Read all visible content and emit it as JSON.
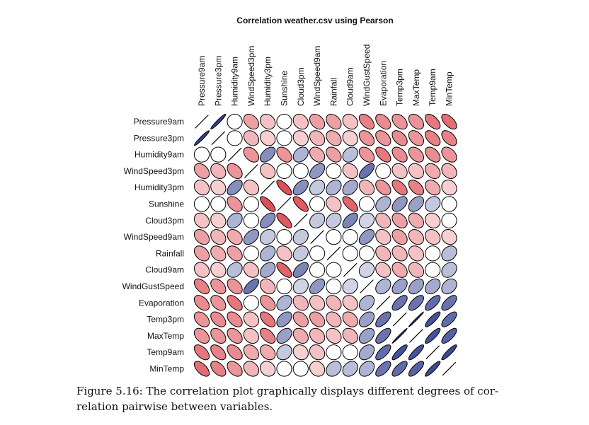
{
  "chart_data": {
    "type": "heatmap",
    "subtype": "correlation-ellipse",
    "title": "Correlation weather.csv using Pearson",
    "method": "Pearson",
    "variables": [
      "Pressure9am",
      "Pressure3pm",
      "Humidity9am",
      "WindSpeed3pm",
      "Humidity3pm",
      "Sunshine",
      "Cloud3pm",
      "WindSpeed9am",
      "Rainfall",
      "Cloud9am",
      "WindGustSpeed",
      "Evaporation",
      "Temp3pm",
      "MaxTemp",
      "Temp9am",
      "MinTemp"
    ],
    "correlations": [
      [
        1.0,
        0.96,
        0.0,
        -0.35,
        -0.2,
        0.0,
        -0.2,
        -0.35,
        -0.35,
        -0.2,
        -0.5,
        -0.45,
        -0.4,
        -0.4,
        -0.55,
        -0.6
      ],
      [
        0.96,
        1.0,
        0.0,
        -0.25,
        -0.15,
        0.0,
        -0.15,
        -0.25,
        -0.3,
        -0.15,
        -0.4,
        -0.4,
        -0.45,
        -0.4,
        -0.5,
        -0.5
      ],
      [
        0.0,
        0.0,
        1.0,
        -0.4,
        0.5,
        -0.4,
        0.3,
        -0.3,
        -0.35,
        0.25,
        -0.4,
        -0.55,
        -0.45,
        -0.4,
        -0.45,
        -0.4
      ],
      [
        -0.35,
        -0.25,
        -0.4,
        1.0,
        -0.2,
        0.0,
        0.0,
        0.45,
        0.0,
        -0.2,
        0.65,
        0.0,
        -0.2,
        -0.2,
        -0.3,
        -0.25
      ],
      [
        -0.2,
        -0.15,
        0.5,
        -0.2,
        1.0,
        -0.75,
        0.5,
        0.2,
        0.3,
        0.35,
        -0.25,
        -0.4,
        -0.55,
        -0.5,
        -0.3,
        -0.15
      ],
      [
        0.0,
        0.0,
        -0.4,
        0.0,
        -0.75,
        1.0,
        -0.7,
        0.0,
        -0.2,
        -0.65,
        0.0,
        0.3,
        0.45,
        0.4,
        0.2,
        0.0
      ],
      [
        -0.2,
        -0.15,
        0.3,
        0.0,
        0.5,
        -0.7,
        1.0,
        0.2,
        0.2,
        0.55,
        0.15,
        -0.25,
        -0.35,
        -0.3,
        -0.15,
        0.0
      ],
      [
        -0.35,
        -0.25,
        -0.3,
        0.45,
        0.2,
        0.0,
        0.2,
        1.0,
        0.0,
        0.0,
        0.45,
        -0.2,
        -0.35,
        -0.25,
        -0.2,
        -0.15
      ],
      [
        -0.35,
        -0.3,
        -0.35,
        0.0,
        0.3,
        -0.2,
        0.2,
        0.0,
        1.0,
        0.0,
        0.0,
        -0.25,
        -0.25,
        -0.2,
        0.0,
        0.25
      ],
      [
        -0.2,
        -0.15,
        0.25,
        -0.2,
        0.35,
        -0.65,
        0.55,
        0.0,
        0.0,
        1.0,
        0.15,
        -0.2,
        -0.3,
        -0.25,
        0.0,
        0.25
      ],
      [
        -0.5,
        -0.4,
        -0.4,
        0.65,
        -0.25,
        0.0,
        0.15,
        0.45,
        0.0,
        0.15,
        1.0,
        0.3,
        0.4,
        0.4,
        0.35,
        0.3
      ],
      [
        -0.45,
        -0.4,
        -0.55,
        0.0,
        -0.4,
        0.3,
        -0.25,
        -0.2,
        -0.25,
        -0.2,
        0.3,
        1.0,
        0.65,
        0.65,
        0.7,
        0.65
      ],
      [
        -0.4,
        -0.45,
        -0.45,
        -0.2,
        -0.55,
        0.45,
        -0.35,
        -0.35,
        -0.25,
        -0.3,
        0.4,
        0.65,
        1.0,
        0.99,
        0.85,
        0.7
      ],
      [
        -0.4,
        -0.4,
        -0.4,
        -0.2,
        -0.5,
        0.4,
        -0.3,
        -0.25,
        -0.2,
        -0.25,
        0.4,
        0.65,
        0.99,
        1.0,
        0.85,
        0.75
      ],
      [
        -0.55,
        -0.5,
        -0.45,
        -0.3,
        -0.3,
        0.2,
        -0.15,
        -0.2,
        0.0,
        0.0,
        0.35,
        0.7,
        0.85,
        0.85,
        1.0,
        0.9
      ],
      [
        -0.6,
        -0.5,
        -0.4,
        -0.25,
        -0.15,
        0.0,
        0.0,
        -0.15,
        0.25,
        0.25,
        0.3,
        0.65,
        0.7,
        0.75,
        0.9,
        1.0
      ]
    ],
    "colors": {
      "negative": "#d6232c",
      "zero": "#ffffff",
      "positive": "#2c3a8c",
      "stroke": "#000000"
    }
  },
  "caption": {
    "line1": "Figure 5.16: The correlation plot graphically displays different degrees of cor-",
    "line2": "relation pairwise between variables."
  }
}
